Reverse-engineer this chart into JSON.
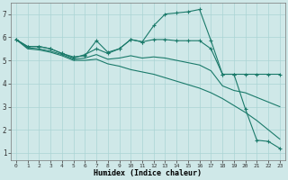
{
  "title": "",
  "xlabel": "Humidex (Indice chaleur)",
  "background_color": "#cfe8e8",
  "grid_color": "#aad4d4",
  "line_color": "#1a7a6a",
  "xlim": [
    -0.5,
    23.5
  ],
  "ylim": [
    0.7,
    7.5
  ],
  "xticks": [
    0,
    1,
    2,
    3,
    4,
    5,
    6,
    7,
    8,
    9,
    10,
    11,
    12,
    13,
    14,
    15,
    16,
    17,
    18,
    19,
    20,
    21,
    22,
    23
  ],
  "yticks": [
    1,
    2,
    3,
    4,
    5,
    6,
    7
  ],
  "lines": [
    {
      "x": [
        0,
        1,
        2,
        3,
        4,
        5,
        6,
        7,
        8,
        9,
        10,
        11,
        12,
        13,
        14,
        15,
        16,
        17,
        18,
        19,
        20,
        21,
        22,
        23
      ],
      "y": [
        5.9,
        5.6,
        5.6,
        5.5,
        5.3,
        5.15,
        5.2,
        5.85,
        5.35,
        5.5,
        5.9,
        5.8,
        6.5,
        7.0,
        7.05,
        7.1,
        7.2,
        5.85,
        4.4,
        4.4,
        2.9,
        1.55,
        1.5,
        1.2
      ],
      "marker": "+"
    },
    {
      "x": [
        0,
        1,
        2,
        3,
        4,
        5,
        6,
        7,
        8,
        9,
        10,
        11,
        12,
        13,
        14,
        15,
        16,
        17,
        18,
        19,
        20,
        21,
        22,
        23
      ],
      "y": [
        5.9,
        5.6,
        5.6,
        5.5,
        5.3,
        5.1,
        5.25,
        5.5,
        5.3,
        5.5,
        5.9,
        5.8,
        5.9,
        5.9,
        5.85,
        5.85,
        5.85,
        5.5,
        4.4,
        4.4,
        4.4,
        4.4,
        4.4,
        4.4
      ],
      "marker": "+"
    },
    {
      "x": [
        0,
        1,
        2,
        3,
        4,
        5,
        6,
        7,
        8,
        9,
        10,
        11,
        12,
        13,
        14,
        15,
        16,
        17,
        18,
        19,
        20,
        21,
        22,
        23
      ],
      "y": [
        5.9,
        5.5,
        5.45,
        5.35,
        5.2,
        5.0,
        5.0,
        5.05,
        4.85,
        4.75,
        4.6,
        4.5,
        4.4,
        4.25,
        4.1,
        3.95,
        3.8,
        3.6,
        3.35,
        3.05,
        2.75,
        2.4,
        2.0,
        1.6
      ],
      "marker": null
    },
    {
      "x": [
        0,
        1,
        2,
        3,
        4,
        5,
        6,
        7,
        8,
        9,
        10,
        11,
        12,
        13,
        14,
        15,
        16,
        17,
        18,
        19,
        20,
        21,
        22,
        23
      ],
      "y": [
        5.9,
        5.55,
        5.5,
        5.4,
        5.25,
        5.05,
        5.1,
        5.25,
        5.05,
        5.1,
        5.2,
        5.1,
        5.15,
        5.1,
        5.0,
        4.9,
        4.8,
        4.55,
        3.9,
        3.7,
        3.6,
        3.4,
        3.2,
        3.0
      ],
      "marker": null
    }
  ]
}
